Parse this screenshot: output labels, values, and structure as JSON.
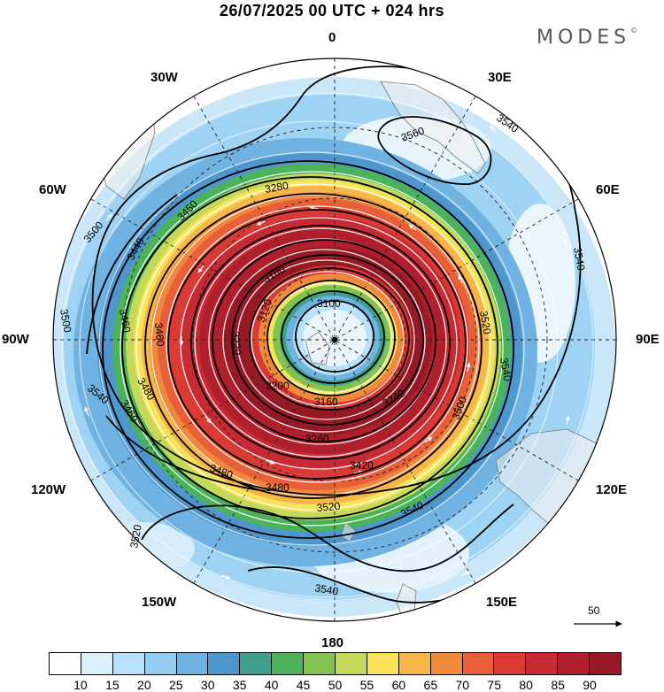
{
  "header": {
    "title": "26/07/2025  00 UTC  + 024 hrs",
    "brand": "MODES",
    "brand_mark": "©"
  },
  "map": {
    "projection": "south polar stereographic",
    "longitude_labels": [
      "0",
      "30E",
      "60E",
      "90E",
      "120E",
      "150E",
      "180",
      "150W",
      "120W",
      "90W",
      "60W",
      "30W"
    ],
    "contour_labels": [
      "3540",
      "3560",
      "3540",
      "3540",
      "3520",
      "3540",
      "3500",
      "3480",
      "3460",
      "3440",
      "3500",
      "3500",
      "3460",
      "3480",
      "3520",
      "3540",
      "3520",
      "3540",
      "3100",
      "3120",
      "3160",
      "3180",
      "3200",
      "3220",
      "3240",
      "3260",
      "3280",
      "3420",
      "3450",
      "3460",
      "3480"
    ],
    "reference_vector_label": "50"
  },
  "colorbar": {
    "colors": [
      "#ffffff",
      "#dcf0fb",
      "#b9e1f7",
      "#95cdf0",
      "#70b2e1",
      "#4f96cd",
      "#3fa08c",
      "#4cb35a",
      "#82c24f",
      "#c4d95a",
      "#f6e35a",
      "#f7b64a",
      "#f1893d",
      "#e8603a",
      "#d93a35",
      "#c62a32",
      "#b0202c",
      "#961a25"
    ],
    "tick_labels": [
      "10",
      "15",
      "20",
      "25",
      "30",
      "35",
      "40",
      "45",
      "50",
      "55",
      "60",
      "65",
      "70",
      "75",
      "80",
      "85",
      "90"
    ]
  }
}
